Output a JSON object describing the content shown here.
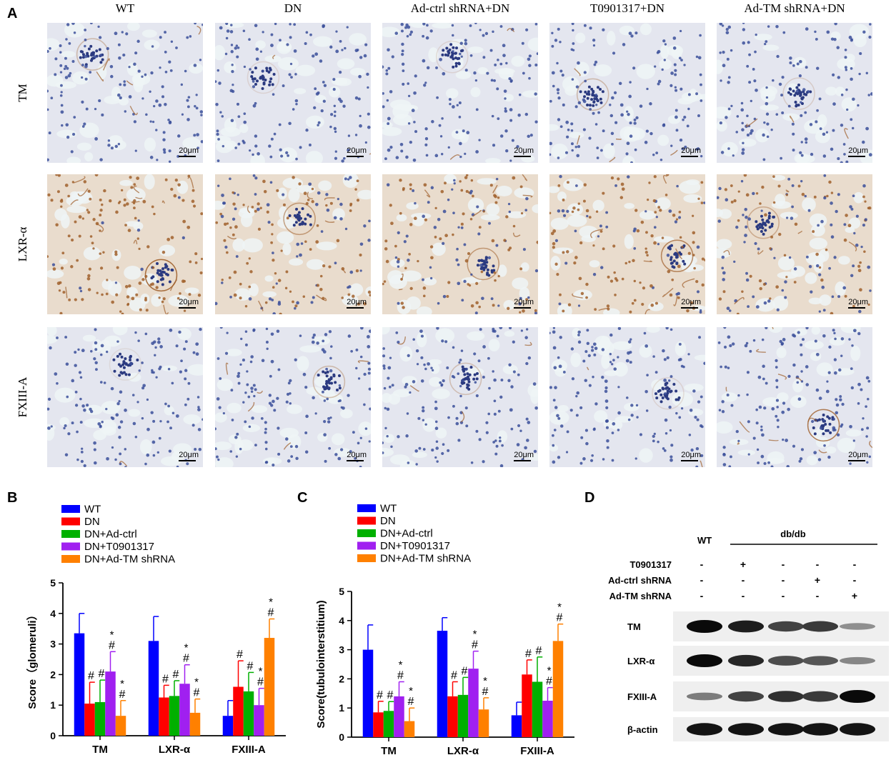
{
  "panel_a": {
    "letter": "A",
    "columns": [
      "WT",
      "DN",
      "Ad-ctrl shRNA+DN",
      "T0901317+DN",
      "Ad-TM shRNA+DN"
    ],
    "rows": [
      "TM",
      "LXR-α",
      "FXIII-A"
    ],
    "scale_label": "20μm",
    "colors": {
      "tile_bg": "#e4e6ef",
      "hematoxylin": "#3b4f9a",
      "dab": "#a0602c",
      "lumen": "#eef4f6"
    }
  },
  "panel_b": {
    "letter": "B"
  },
  "panel_c": {
    "letter": "C"
  },
  "panel_d": {
    "letter": "D",
    "wt_label": "WT",
    "dbdb_label": "db/db",
    "treatment_rows": [
      {
        "label": "T0901317",
        "marks": [
          "-",
          "+",
          "-",
          "-",
          "-"
        ]
      },
      {
        "label": "Ad-ctrl shRNA",
        "marks": [
          "-",
          "-",
          "-",
          "+",
          "-"
        ]
      },
      {
        "label": "Ad-TM shRNA",
        "marks": [
          "-",
          "-",
          "-",
          "-",
          "+"
        ]
      }
    ],
    "blots": [
      {
        "label": "TM",
        "intensities": [
          1.0,
          0.9,
          0.7,
          0.75,
          0.3
        ]
      },
      {
        "label": "LXR-α",
        "intensities": [
          1.0,
          0.85,
          0.65,
          0.6,
          0.35
        ]
      },
      {
        "label": "FXIII-A",
        "intensities": [
          0.4,
          0.7,
          0.8,
          0.75,
          1.0
        ]
      },
      {
        "label": "β-actin",
        "intensities": [
          0.95,
          0.95,
          0.95,
          0.95,
          0.95
        ]
      }
    ]
  },
  "chart_data": [
    {
      "type": "bar",
      "ylabel": "Score（glomeruli）",
      "ylim": [
        0,
        5
      ],
      "yticks": [
        0,
        1,
        2,
        3,
        4,
        5
      ],
      "categories": [
        "TM",
        "LXR-α",
        "FXIII-A"
      ],
      "legend_placement": "top-left",
      "grid": false,
      "series": [
        {
          "name": "WT",
          "color": "#0000ff",
          "values": [
            3.35,
            3.1,
            0.65
          ],
          "errors": [
            0.65,
            0.8,
            0.5
          ],
          "annotations": [
            "",
            "",
            ""
          ]
        },
        {
          "name": "DN",
          "color": "#ff0000",
          "values": [
            1.05,
            1.25,
            1.6
          ],
          "errors": [
            0.7,
            0.4,
            0.85
          ],
          "annotations": [
            "#",
            "#",
            "#"
          ]
        },
        {
          "name": "DN+Ad-ctrl",
          "color": "#00b000",
          "values": [
            1.1,
            1.3,
            1.45
          ],
          "errors": [
            0.72,
            0.5,
            0.62
          ],
          "annotations": [
            "#",
            "#",
            "#"
          ]
        },
        {
          "name": "DN+T0901317",
          "color": "#a020f0",
          "values": [
            2.1,
            1.7,
            1.0
          ],
          "errors": [
            0.65,
            0.62,
            0.55
          ],
          "annotations": [
            "*\n#",
            "*\n#",
            "*\n#"
          ]
        },
        {
          "name": "DN+Ad-TM shRNA",
          "color": "#ff8000",
          "values": [
            0.65,
            0.75,
            3.2
          ],
          "errors": [
            0.5,
            0.45,
            0.62
          ],
          "annotations": [
            "*\n#",
            "*\n#",
            "*\n#"
          ]
        }
      ]
    },
    {
      "type": "bar",
      "ylabel": "Score(tubulointerstitium)",
      "ylim": [
        0,
        5
      ],
      "yticks": [
        0,
        1,
        2,
        3,
        4,
        5
      ],
      "categories": [
        "TM",
        "LXR-α",
        "FXIII-A"
      ],
      "legend_placement": "top-left",
      "grid": false,
      "series": [
        {
          "name": "WT",
          "color": "#0000ff",
          "values": [
            3.0,
            3.65,
            0.75
          ],
          "errors": [
            0.85,
            0.45,
            0.45
          ],
          "annotations": [
            "",
            "",
            ""
          ]
        },
        {
          "name": "DN",
          "color": "#ff0000",
          "values": [
            0.85,
            1.4,
            2.15
          ],
          "errors": [
            0.38,
            0.5,
            0.5
          ],
          "annotations": [
            "#",
            "#",
            "#"
          ]
        },
        {
          "name": "DN+Ad-ctrl",
          "color": "#00b000",
          "values": [
            0.9,
            1.45,
            1.9
          ],
          "errors": [
            0.32,
            0.6,
            0.85
          ],
          "annotations": [
            "#",
            "#",
            "#"
          ]
        },
        {
          "name": "DN+T0901317",
          "color": "#a020f0",
          "values": [
            1.4,
            2.35,
            1.25
          ],
          "errors": [
            0.5,
            0.6,
            0.45
          ],
          "annotations": [
            "*\n#",
            "*\n#",
            "*\n#"
          ]
        },
        {
          "name": "DN+Ad-TM shRNA",
          "color": "#ff8000",
          "values": [
            0.55,
            0.95,
            3.3
          ],
          "errors": [
            0.45,
            0.4,
            0.58
          ],
          "annotations": [
            "*\n#",
            "*\n#",
            "*\n#"
          ]
        }
      ]
    }
  ]
}
